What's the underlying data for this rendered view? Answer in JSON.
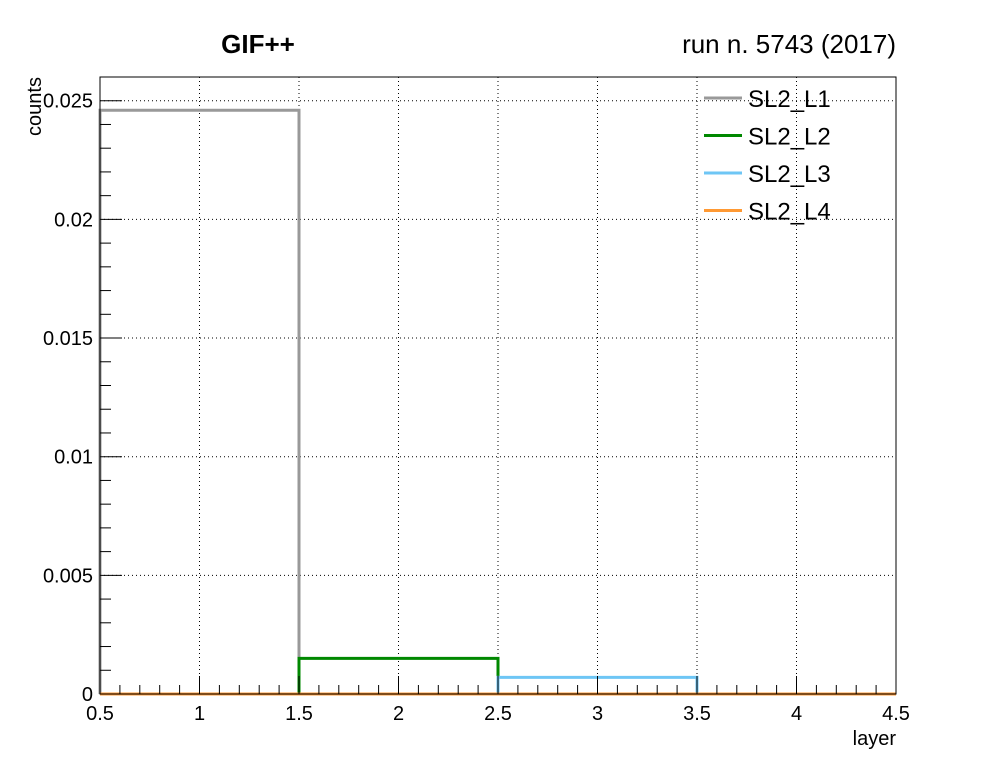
{
  "header": {
    "title": "GIF++",
    "run_label": "run n. 5743 (2017)"
  },
  "chart_data": {
    "type": "step",
    "xlabel": "layer",
    "ylabel": "counts",
    "xlim": [
      0.5,
      4.5
    ],
    "ylim": [
      0,
      0.026
    ],
    "grid": true,
    "legend_position": "top-right",
    "x_ticks": [
      0.5,
      1,
      1.5,
      2,
      2.5,
      3,
      3.5,
      4,
      4.5
    ],
    "x_tick_labels": [
      "0.5",
      "1",
      "1.5",
      "2",
      "2.5",
      "3",
      "3.5",
      "4",
      "4.5"
    ],
    "y_ticks": [
      0,
      0.005,
      0.01,
      0.015,
      0.02,
      0.025
    ],
    "y_tick_labels": [
      "0",
      "0.005",
      "0.01",
      "0.015",
      "0.02",
      "0.025"
    ],
    "bin_edges": [
      0.5,
      1.5,
      2.5,
      3.5,
      4.5
    ],
    "series": [
      {
        "name": "SL2_L1",
        "color": "#999999",
        "values": [
          0.0246,
          0,
          0,
          0
        ]
      },
      {
        "name": "SL2_L2",
        "color": "#008800",
        "values": [
          0,
          0.0015,
          0,
          0
        ]
      },
      {
        "name": "SL2_L3",
        "color": "#6ec6f5",
        "values": [
          0,
          0,
          0.0007,
          0
        ]
      },
      {
        "name": "SL2_L4",
        "color": "#ff9933",
        "values": [
          0,
          0,
          0,
          0
        ]
      }
    ]
  }
}
